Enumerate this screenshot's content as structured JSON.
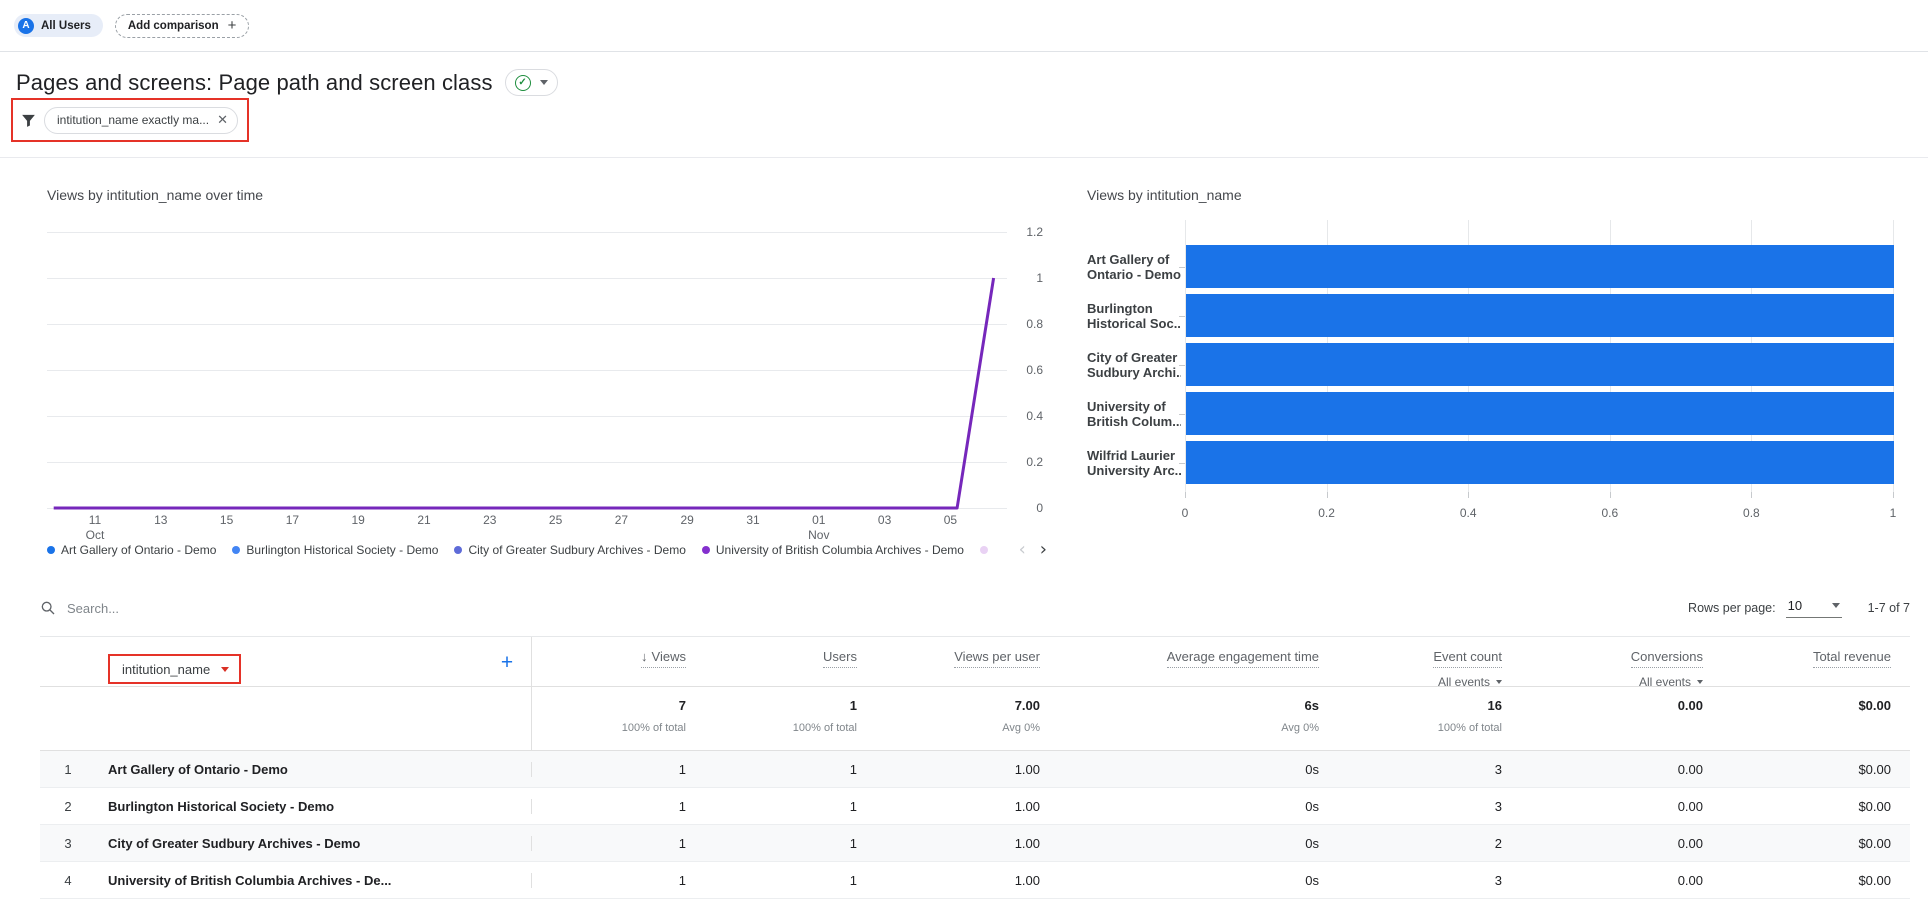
{
  "comparison_bar": {
    "all_users": "All Users",
    "add_comparison": "Add comparison"
  },
  "header": {
    "title": "Pages and screens: Page path and screen class"
  },
  "filter": {
    "chip": "intitution_name exactly ma..."
  },
  "icons": {
    "avatar_letter": "A",
    "add_plus": "+",
    "close_x": "✕",
    "check": "✓",
    "sort_desc": "↓",
    "legend_prev": "‹",
    "legend_next": "›",
    "add_column_plus": "+"
  },
  "colors": {
    "accent_blue": "#1a73e8",
    "annotation_red": "#e53228",
    "line_purple": "#7627bb",
    "status_green": "#1e8e3e"
  },
  "chart_data": [
    {
      "type": "line",
      "title": "Views by intitution_name over time",
      "ylim": [
        0,
        1.2
      ],
      "y_ticks": [
        "1.2",
        "1",
        "0.8",
        "0.6",
        "0.4",
        "0.2",
        "0"
      ],
      "x_ticks": [
        "11",
        "13",
        "15",
        "17",
        "19",
        "21",
        "23",
        "25",
        "27",
        "29",
        "31",
        "01",
        "03",
        "05"
      ],
      "x_subticks": [
        "Oct",
        "",
        "",
        "",
        "",
        "",
        "",
        "",
        "",
        "",
        "",
        "Nov",
        "",
        ""
      ],
      "grid": true,
      "legend_position": "bottom",
      "line": {
        "name": "University of British Columbia Archives - Demo",
        "color": "#7627bb",
        "points": [
          [
            0.007,
            0
          ],
          [
            0.948,
            0
          ],
          [
            0.986,
            1
          ]
        ]
      },
      "legend": [
        {
          "label": "Art Gallery of Ontario - Demo",
          "color": "#1a73e8"
        },
        {
          "label": "Burlington Historical Society - Demo",
          "color": "#4285f4"
        },
        {
          "label": "City of Greater Sudbury Archives - Demo",
          "color": "#5e6bd8"
        },
        {
          "label": "University of British Columbia Archives - Demo",
          "color": "#8430ce"
        },
        {
          "label": "",
          "color": "#e9d2f4"
        }
      ]
    },
    {
      "type": "bar",
      "title": "Views by intitution_name",
      "orientation": "horizontal",
      "categories": [
        [
          "Art Gallery of",
          "Ontario - Demo"
        ],
        [
          "Burlington",
          "Historical Soc..."
        ],
        [
          "City of Greater",
          "Sudbury Archi..."
        ],
        [
          "University of",
          "British Colum..."
        ],
        [
          "Wilfrid Laurier",
          "University Arc..."
        ]
      ],
      "values": [
        1,
        1,
        1,
        1,
        1
      ],
      "xlim": [
        0,
        1
      ],
      "x_ticks": [
        "0",
        "0.2",
        "0.4",
        "0.6",
        "0.8",
        "1"
      ],
      "bar_color": "#1a73e8"
    }
  ],
  "table": {
    "search_placeholder": "Search...",
    "rows_per_page_label": "Rows per page:",
    "rows_per_page_value": "10",
    "pagination": "1-7 of 7",
    "dimension_header": "intitution_name",
    "all_events_label": "All events",
    "columns": [
      "Views",
      "Users",
      "Views per user",
      "Average engagement time",
      "Event count",
      "Conversions",
      "Total revenue"
    ],
    "totals": [
      {
        "value": "7",
        "sub": "100% of total"
      },
      {
        "value": "1",
        "sub": "100% of total"
      },
      {
        "value": "7.00",
        "sub": "Avg 0%"
      },
      {
        "value": "6s",
        "sub": "Avg 0%"
      },
      {
        "value": "16",
        "sub": "100% of total"
      },
      {
        "value": "0.00",
        "sub": ""
      },
      {
        "value": "$0.00",
        "sub": ""
      }
    ],
    "rows": [
      {
        "index": "1",
        "name": "Art Gallery of Ontario - Demo",
        "values": [
          "1",
          "1",
          "1.00",
          "0s",
          "3",
          "0.00",
          "$0.00"
        ]
      },
      {
        "index": "2",
        "name": "Burlington Historical Society - Demo",
        "values": [
          "1",
          "1",
          "1.00",
          "0s",
          "3",
          "0.00",
          "$0.00"
        ]
      },
      {
        "index": "3",
        "name": "City of Greater Sudbury Archives - Demo",
        "values": [
          "1",
          "1",
          "1.00",
          "0s",
          "2",
          "0.00",
          "$0.00"
        ]
      },
      {
        "index": "4",
        "name": "University of British Columbia Archives - De...",
        "values": [
          "1",
          "1",
          "1.00",
          "0s",
          "3",
          "0.00",
          "$0.00"
        ]
      }
    ]
  }
}
